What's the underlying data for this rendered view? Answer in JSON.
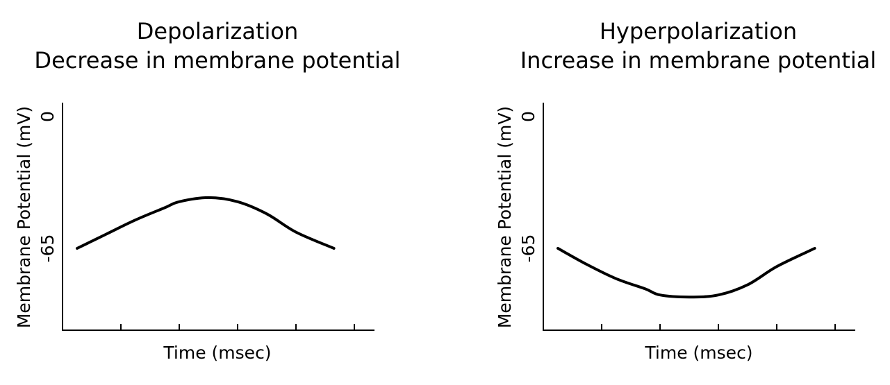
{
  "chart_data": [
    {
      "type": "line",
      "title": "Depolarization",
      "subtitle": "Decrease in membrane potential",
      "xlabel": "Time (msec)",
      "ylabel": "Membrane Potential (mV)",
      "yticks": [
        {
          "value": 0,
          "label": "0"
        },
        {
          "value": -65,
          "label": "-65"
        }
      ],
      "ylim": [
        -100,
        5
      ],
      "xlim": [
        0,
        5.35
      ],
      "xticks_count": 5,
      "grid": false,
      "line_color": "#000000",
      "series": [
        {
          "x": [
            0.25,
            0.75,
            1.25,
            1.75,
            2.0,
            2.5,
            3.0,
            3.5,
            4.0,
            4.65
          ],
          "y": [
            -65,
            -58,
            -51,
            -45,
            -42,
            -40,
            -42,
            -48,
            -57,
            -65
          ]
        }
      ]
    },
    {
      "type": "line",
      "title": "Hyperpolarization",
      "subtitle": "Increase in membrane potential",
      "xlabel": "Time (msec)",
      "ylabel": "Membrane Potential (mV)",
      "yticks": [
        {
          "value": 0,
          "label": "0"
        },
        {
          "value": -65,
          "label": "-65"
        }
      ],
      "ylim": [
        -100,
        5
      ],
      "xlim": [
        0,
        5.35
      ],
      "xticks_count": 5,
      "grid": false,
      "line_color": "#000000",
      "series": [
        {
          "x": [
            0.25,
            0.75,
            1.25,
            1.75,
            2.0,
            2.5,
            3.0,
            3.5,
            4.0,
            4.65
          ],
          "y": [
            -65,
            -73,
            -80,
            -85,
            -88,
            -89,
            -88,
            -83,
            -74,
            -65
          ]
        }
      ]
    }
  ]
}
